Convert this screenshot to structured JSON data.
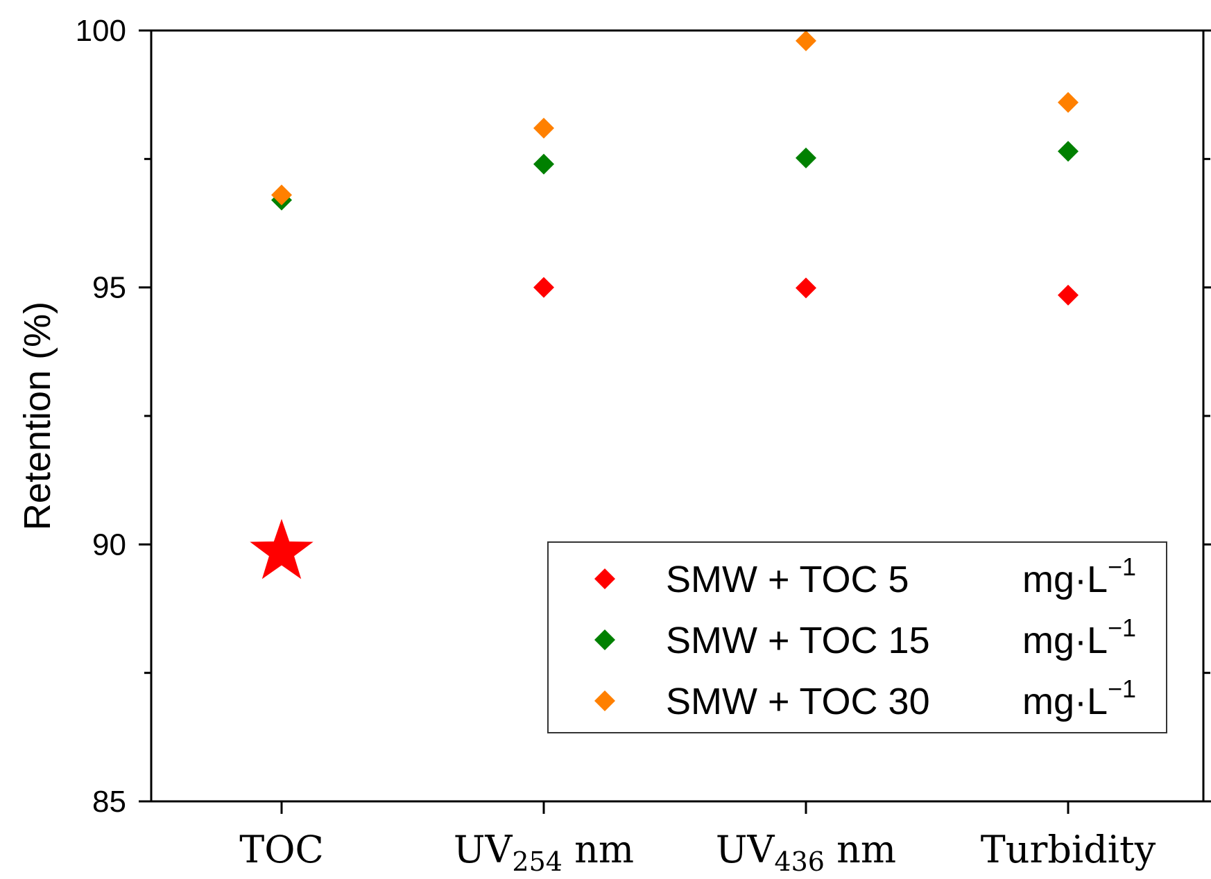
{
  "chart_data": {
    "type": "scatter",
    "title": "",
    "xlabel": "",
    "ylabel": "Retention (%)",
    "ylim": [
      85,
      100
    ],
    "yticks": [
      85,
      90,
      95,
      100
    ],
    "grid": false,
    "legend_position": "bottom-right",
    "categories": [
      {
        "main": "TOC",
        "sub": "",
        "suffix": ""
      },
      {
        "main": "UV",
        "sub": "254",
        "suffix": " nm"
      },
      {
        "main": "UV",
        "sub": "436",
        "suffix": " nm"
      },
      {
        "main": "Turbidity",
        "sub": "",
        "suffix": ""
      }
    ],
    "series": [
      {
        "name": "SMW + TOC 5",
        "unit": "mg·L",
        "unit_exp": "−1",
        "color": "#ff0000",
        "marker": "diamond",
        "values": [
          null,
          95.0,
          94.99,
          94.85
        ]
      },
      {
        "name": "SMW + TOC 15",
        "unit": "mg·L",
        "unit_exp": "−1",
        "color": "#008000",
        "marker": "diamond",
        "values": [
          96.7,
          97.4,
          97.52,
          97.65
        ]
      },
      {
        "name": "SMW + TOC 30",
        "unit": "mg·L",
        "unit_exp": "−1",
        "color": "#ff8000",
        "marker": "diamond",
        "values": [
          96.8,
          98.1,
          99.8,
          98.6
        ]
      }
    ],
    "annotations": [
      {
        "type": "star",
        "category_index": 0,
        "value": 89.85,
        "color": "#ff0000"
      }
    ]
  }
}
